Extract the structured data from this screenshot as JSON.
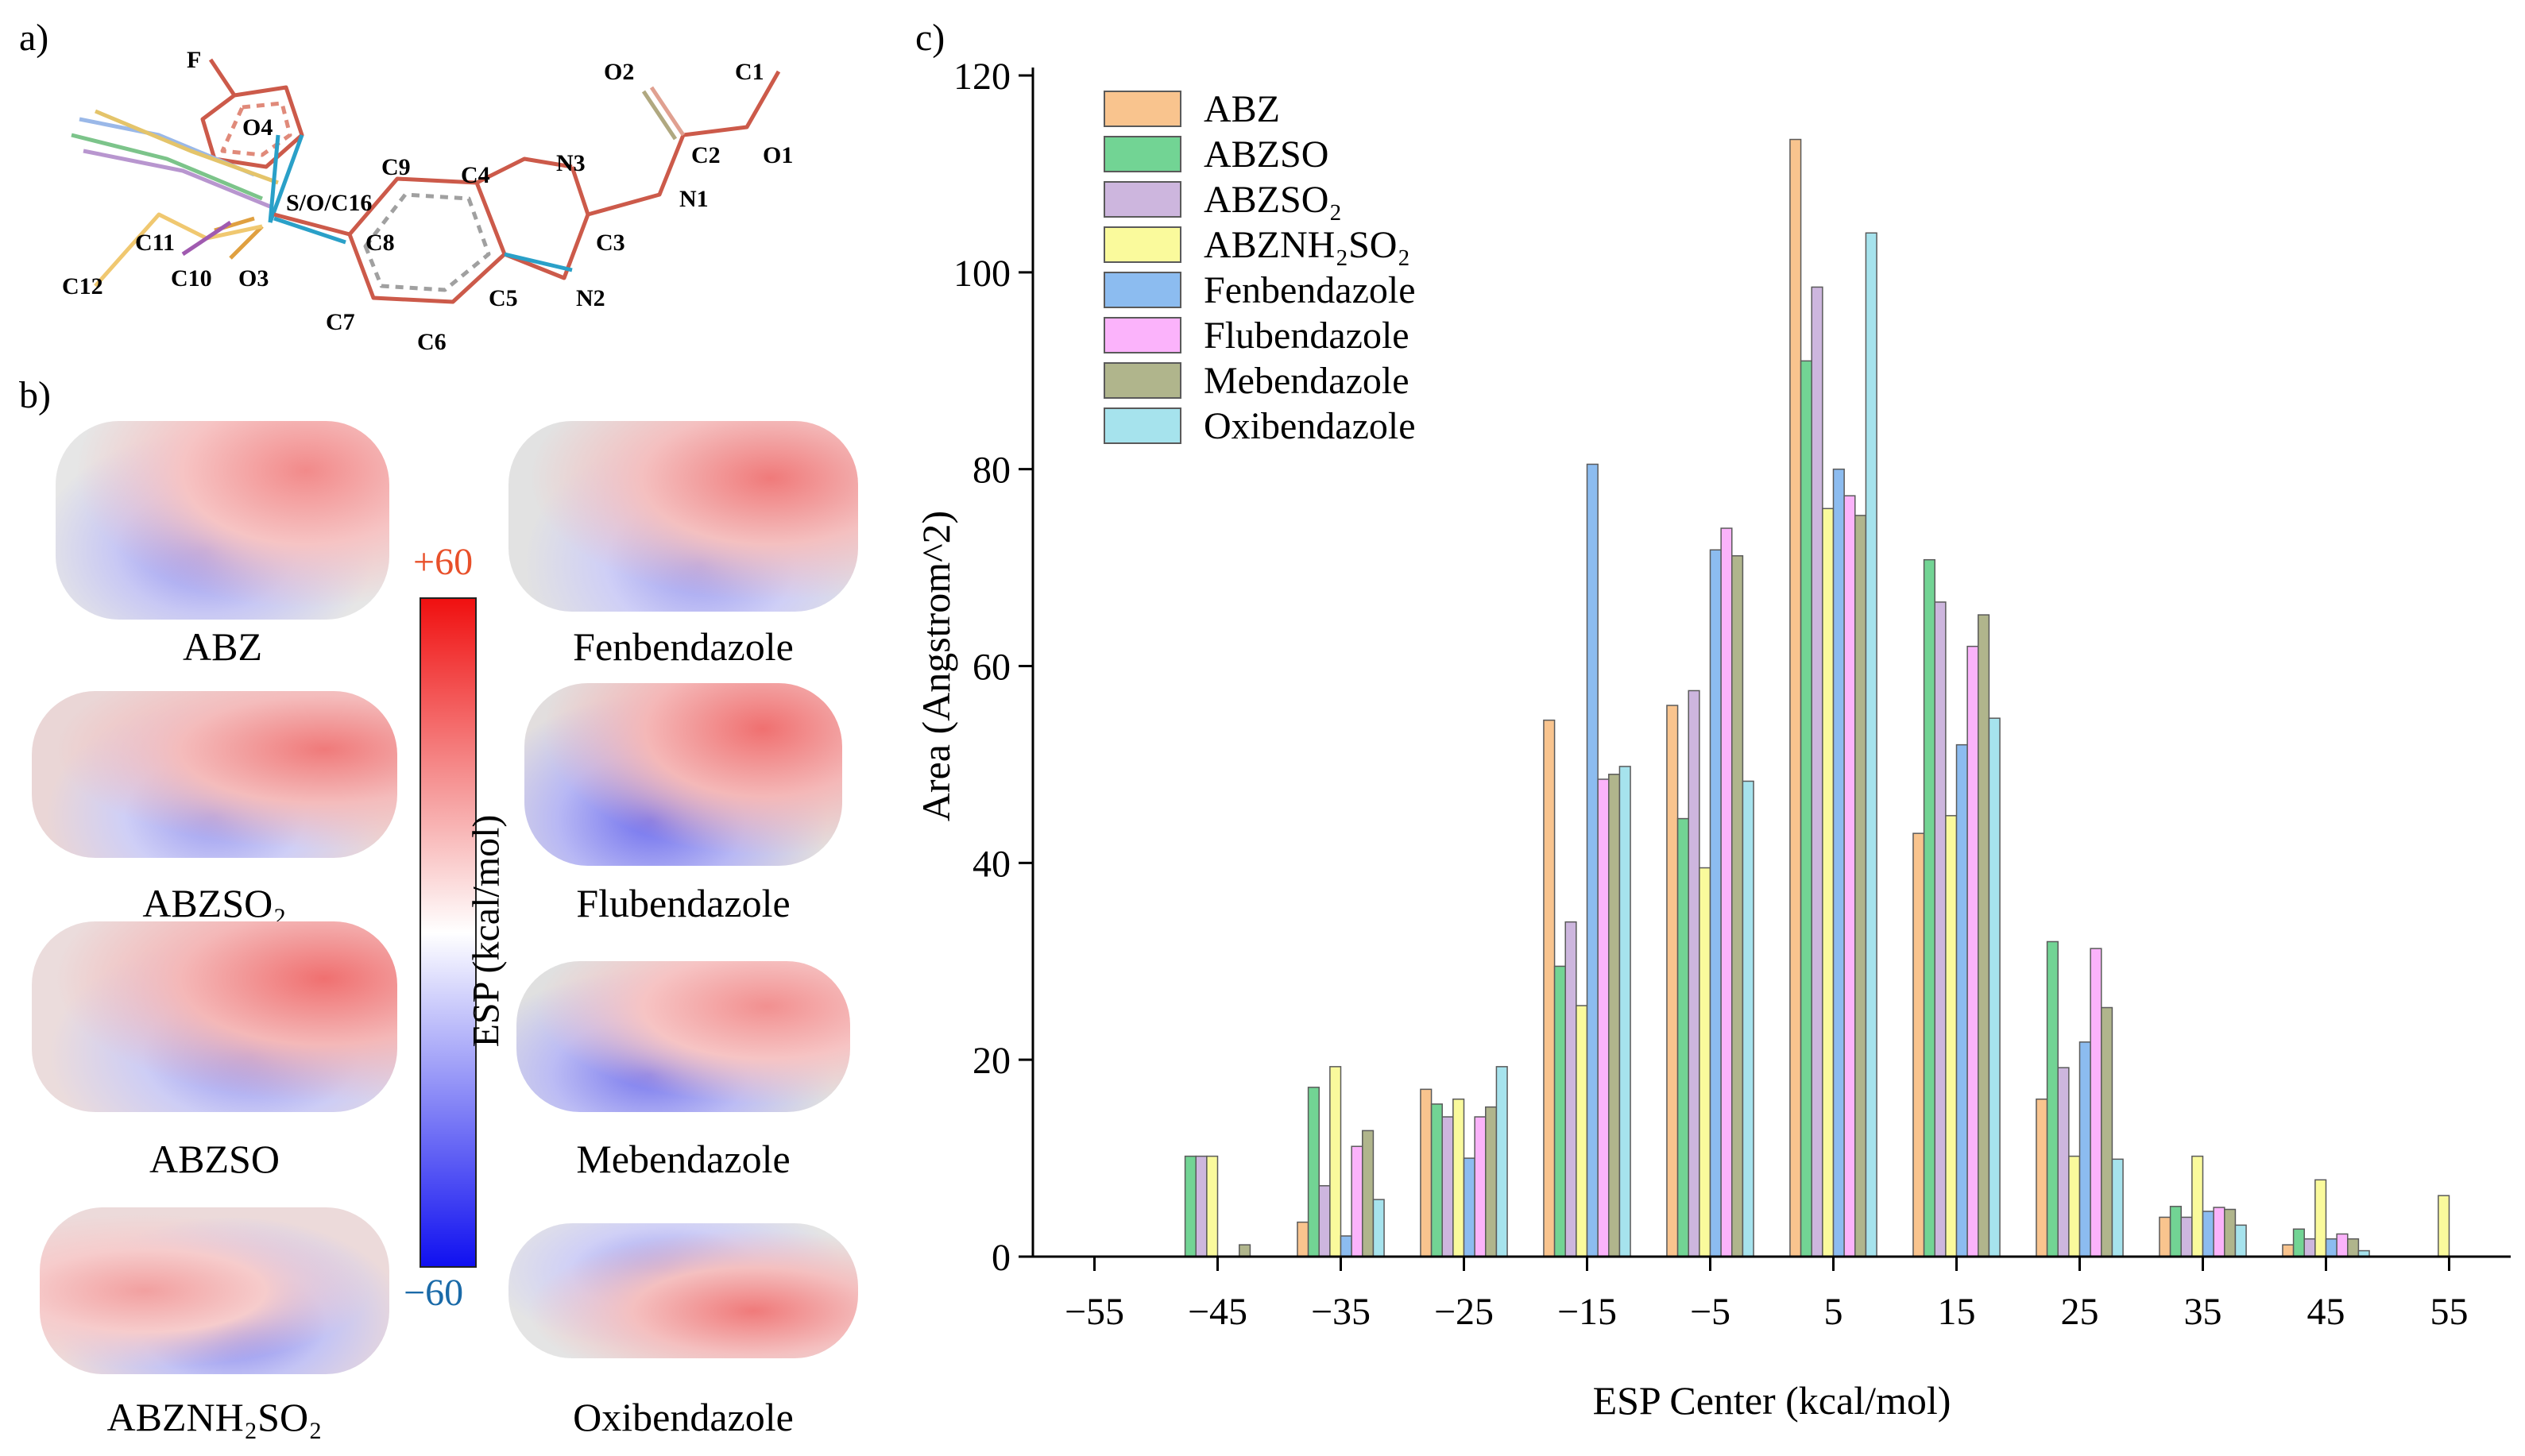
{
  "panels": {
    "a": "a)",
    "b": "b)",
    "c": "c)"
  },
  "panel_a": {
    "atoms": [
      "F",
      "O4",
      "O2",
      "C1",
      "C2",
      "O1",
      "N1",
      "N3",
      "C4",
      "C9",
      "S/O/C16",
      "C8",
      "C3",
      "C5",
      "N2",
      "C11",
      "C10",
      "O3",
      "C12",
      "C7",
      "C6"
    ]
  },
  "panel_b": {
    "molecules": [
      "ABZ",
      "Fenbendazole",
      "ABZSO₂",
      "Flubendazole",
      "ABZSO",
      "Mebendazole",
      "ABZNH₂SO₂",
      "Oxibendazole"
    ],
    "colorbar": {
      "max_label": "+60",
      "min_label": "−60",
      "title": "ESP (kcal/mol)",
      "max_color": "#e8502a",
      "min_color": "#1a6aa8"
    }
  },
  "chart_data": {
    "type": "bar",
    "xlabel": "ESP Center (kcal/mol)",
    "ylabel": "Area (Angstrom^2)",
    "ylim": [
      0,
      120
    ],
    "xlim": [
      -60,
      60
    ],
    "yticks": [
      0,
      20,
      40,
      60,
      80,
      100,
      120
    ],
    "xticks": [
      -55,
      -45,
      -35,
      -25,
      -15,
      -5,
      5,
      15,
      25,
      35,
      45,
      55
    ],
    "xtick_labels": [
      "−55",
      "−45",
      "−35",
      "−25",
      "−15",
      "−5",
      "5",
      "15",
      "25",
      "35",
      "45",
      "55"
    ],
    "categories": [
      -45,
      -35,
      -25,
      -15,
      -5,
      5,
      15,
      25,
      35,
      45,
      55
    ],
    "legend_position": "top-left",
    "series": [
      {
        "name": "ABZ",
        "color": "#f9c48e",
        "values": [
          0,
          3.5,
          17,
          54.5,
          56,
          113.5,
          43,
          16,
          4,
          1.2,
          0
        ]
      },
      {
        "name": "ABZSO",
        "color": "#72d494",
        "values": [
          10.2,
          17.2,
          15.5,
          29.5,
          44.5,
          91,
          70.8,
          32,
          5.1,
          2.8,
          0
        ]
      },
      {
        "name": "ABZSO₂",
        "color": "#cdb6de",
        "values": [
          10.2,
          7.2,
          14.2,
          34,
          57.5,
          98.5,
          66.5,
          19.2,
          4,
          1.8,
          0
        ]
      },
      {
        "name": "ABZNH₂SO₂",
        "color": "#fafa9c",
        "values": [
          10.2,
          19.3,
          16,
          25.5,
          39.5,
          76,
          44.8,
          10.2,
          10.2,
          7.8,
          6.2
        ]
      },
      {
        "name": "Fenbendazole",
        "color": "#8cbcf0",
        "values": [
          0,
          2.1,
          10,
          80.5,
          71.8,
          80,
          52,
          21.8,
          4.6,
          1.8,
          0
        ]
      },
      {
        "name": "Flubendazole",
        "color": "#fbb3fb",
        "values": [
          0,
          11.2,
          14.2,
          48.5,
          74,
          77.3,
          62,
          31.3,
          5,
          2.3,
          0
        ]
      },
      {
        "name": "Mebendazole",
        "color": "#b0b58c",
        "values": [
          1.2,
          12.8,
          15.2,
          49,
          71.2,
          75.3,
          65.2,
          25.3,
          4.8,
          1.8,
          0
        ]
      },
      {
        "name": "Oxibendazole",
        "color": "#a6e3ed",
        "values": [
          0,
          5.8,
          19.3,
          49.8,
          48.3,
          104,
          54.7,
          9.9,
          3.2,
          0.6,
          0
        ]
      }
    ]
  }
}
